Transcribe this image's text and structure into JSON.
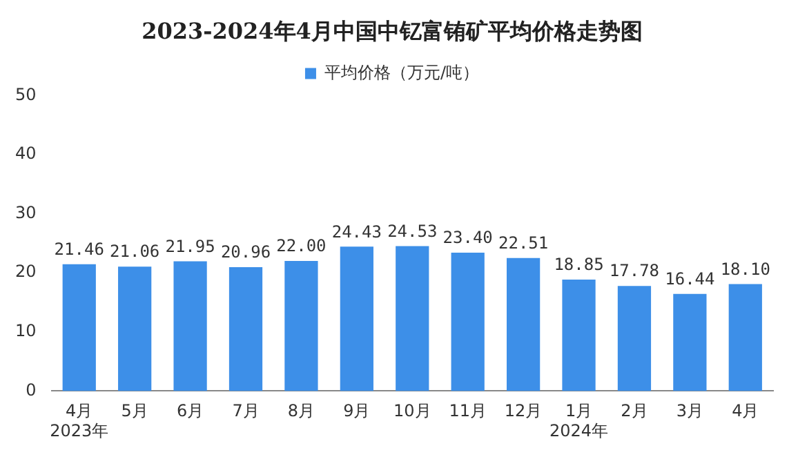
{
  "chart_data": {
    "type": "bar",
    "title": "2023-2024年4月中国中钇富铕矿平均价格走势图",
    "categories": [
      "4月\n2023年",
      "5月",
      "6月",
      "7月",
      "8月",
      "9月",
      "10月",
      "11月",
      "12月",
      "1月\n2024年",
      "2月",
      "3月",
      "4月"
    ],
    "series": [
      {
        "name": "平均价格（万元/吨）",
        "color": "#3d8fe8",
        "values": [
          21.46,
          21.06,
          21.95,
          20.96,
          22.0,
          24.43,
          24.53,
          23.4,
          22.51,
          18.85,
          17.78,
          16.44,
          18.1
        ],
        "value_labels": [
          "21.46",
          "21.06",
          "21.95",
          "20.96",
          "22.00",
          "24.43",
          "24.53",
          "23.40",
          "22.51",
          "18.85",
          "17.78",
          "16.44",
          "18.10"
        ]
      }
    ],
    "ylim": [
      0,
      50
    ],
    "yticks": [
      0,
      10,
      20,
      30,
      40,
      50
    ],
    "grid": false,
    "legend": "top"
  }
}
